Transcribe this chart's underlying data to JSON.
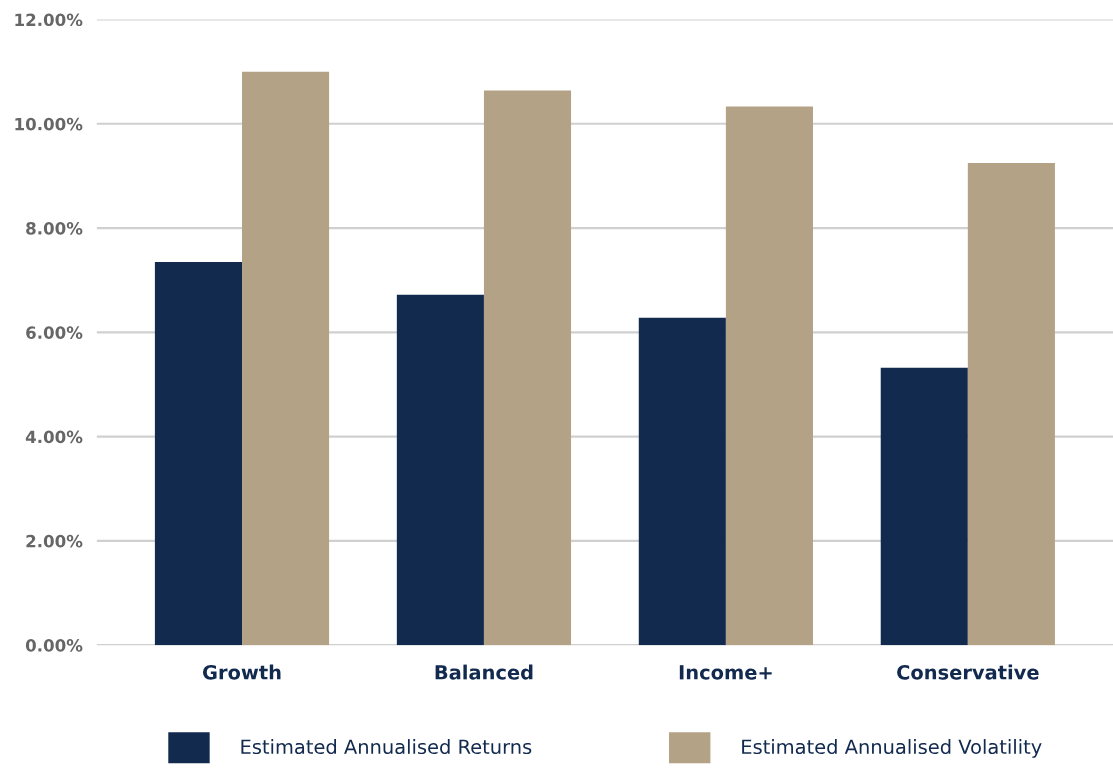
{
  "chart_data": {
    "type": "bar",
    "categories": [
      "Growth",
      "Balanced",
      "Income+",
      "Conservative"
    ],
    "series": [
      {
        "name": "Estimated Annualised Returns",
        "color": "#132a4f",
        "values": [
          7.35,
          6.72,
          6.28,
          5.32
        ]
      },
      {
        "name": "Estimated Annualised Volatility",
        "color": "#b3a286",
        "values": [
          11.0,
          10.64,
          10.33,
          9.25
        ]
      }
    ],
    "ylim": [
      0,
      12
    ],
    "yticks": [
      {
        "value": 0,
        "label": "0.00%"
      },
      {
        "value": 2,
        "label": "2.00%"
      },
      {
        "value": 4,
        "label": "4.00%"
      },
      {
        "value": 6,
        "label": "6.00%"
      },
      {
        "value": 8,
        "label": "8.00%"
      },
      {
        "value": 10,
        "label": "10.00%"
      },
      {
        "value": 12,
        "label": "12.00%"
      }
    ],
    "grid": "y",
    "legend": "bottom"
  }
}
